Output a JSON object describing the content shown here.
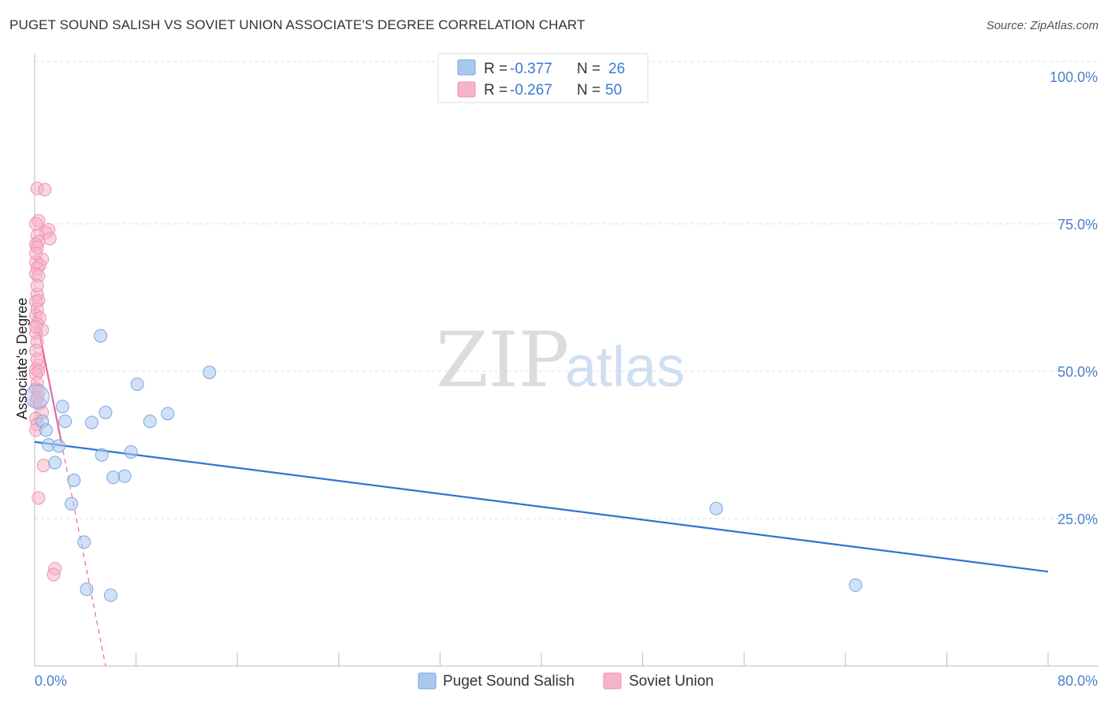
{
  "header": {
    "title": "PUGET SOUND SALISH VS SOVIET UNION ASSOCIATE'S DEGREE CORRELATION CHART",
    "source": "Source: ZipAtlas.com"
  },
  "watermark": {
    "zip": "ZIP",
    "atlas": "atlas"
  },
  "colors": {
    "blue_fill": "#a9c8f0",
    "blue_stroke": "#7aa6e0",
    "blue_line": "#2f74d0",
    "pink_fill": "#f6b4c8",
    "pink_stroke": "#ee93b0",
    "pink_line": "#e8689a",
    "accent_text": "#3b78d8",
    "grid": "#dddddd"
  },
  "stats_box": {
    "rows": [
      {
        "r_label": "R =",
        "r_value": "-0.377",
        "n_label": "N =",
        "n_value": "26"
      },
      {
        "r_label": "R =",
        "r_value": "-0.267",
        "n_label": "N =",
        "n_value": "50"
      }
    ]
  },
  "chart_data": {
    "type": "scatter",
    "title": "PUGET SOUND SALISH VS SOVIET UNION ASSOCIATE'S DEGREE CORRELATION CHART",
    "xlabel": "",
    "ylabel": "Associate's Degree",
    "xlim": [
      0,
      80
    ],
    "ylim": [
      0,
      100
    ],
    "x_tick_labels": [
      "0.0%",
      "80.0%"
    ],
    "y_ticks": [
      25,
      50,
      75,
      100
    ],
    "y_tick_labels": [
      "25.0%",
      "50.0%",
      "75.0%",
      "100.0%"
    ],
    "grid": true,
    "legend_position": "bottom-center",
    "series": [
      {
        "name": "Puget Sound Salish",
        "color": "#a9c8f0",
        "R": -0.377,
        "N": 26,
        "trend": {
          "x": [
            0,
            80
          ],
          "y": [
            38.0,
            16.0
          ],
          "style": "solid"
        },
        "points": [
          {
            "x": 0.2,
            "y": 45.7,
            "big": true
          },
          {
            "x": 0.6,
            "y": 41.5
          },
          {
            "x": 0.9,
            "y": 40.0
          },
          {
            "x": 1.1,
            "y": 37.5
          },
          {
            "x": 1.6,
            "y": 34.5
          },
          {
            "x": 1.9,
            "y": 37.3
          },
          {
            "x": 2.2,
            "y": 44.0
          },
          {
            "x": 2.4,
            "y": 41.5
          },
          {
            "x": 2.9,
            "y": 27.5
          },
          {
            "x": 3.1,
            "y": 31.5
          },
          {
            "x": 3.9,
            "y": 21.0
          },
          {
            "x": 4.1,
            "y": 13.0
          },
          {
            "x": 4.5,
            "y": 41.3
          },
          {
            "x": 5.2,
            "y": 56.0
          },
          {
            "x": 5.3,
            "y": 35.8
          },
          {
            "x": 5.6,
            "y": 43.0
          },
          {
            "x": 6.0,
            "y": 12.0
          },
          {
            "x": 6.2,
            "y": 32.0
          },
          {
            "x": 7.1,
            "y": 32.2
          },
          {
            "x": 7.6,
            "y": 36.3
          },
          {
            "x": 8.1,
            "y": 47.8
          },
          {
            "x": 9.1,
            "y": 41.5
          },
          {
            "x": 10.5,
            "y": 42.8
          },
          {
            "x": 13.8,
            "y": 49.8
          },
          {
            "x": 53.8,
            "y": 26.7
          },
          {
            "x": 64.8,
            "y": 13.7
          }
        ]
      },
      {
        "name": "Soviet Union",
        "color": "#f6b4c8",
        "R": -0.267,
        "N": 50,
        "trend": {
          "x": [
            0,
            2.1
          ],
          "y": [
            60.5,
            38.0
          ],
          "style": "solid",
          "extended_x": [
            2.1,
            5.6
          ],
          "extended_y": [
            38.0,
            0.0
          ]
        },
        "points": [
          {
            "x": 0.2,
            "y": 81.0
          },
          {
            "x": 0.8,
            "y": 80.8
          },
          {
            "x": 0.3,
            "y": 75.5
          },
          {
            "x": 0.1,
            "y": 75.0
          },
          {
            "x": 1.1,
            "y": 74.0
          },
          {
            "x": 0.9,
            "y": 73.5
          },
          {
            "x": 0.2,
            "y": 73.0
          },
          {
            "x": 1.2,
            "y": 72.5
          },
          {
            "x": 0.3,
            "y": 72.0
          },
          {
            "x": 0.1,
            "y": 71.5
          },
          {
            "x": 0.2,
            "y": 71.0
          },
          {
            "x": 0.6,
            "y": 69.0
          },
          {
            "x": 0.1,
            "y": 68.5
          },
          {
            "x": 0.4,
            "y": 68.0
          },
          {
            "x": 0.2,
            "y": 67.5
          },
          {
            "x": 0.1,
            "y": 66.5
          },
          {
            "x": 0.3,
            "y": 66.2
          },
          {
            "x": 0.2,
            "y": 63.0
          },
          {
            "x": 0.3,
            "y": 62.0
          },
          {
            "x": 0.1,
            "y": 61.8
          },
          {
            "x": 0.2,
            "y": 60.5
          },
          {
            "x": 0.1,
            "y": 59.5
          },
          {
            "x": 0.4,
            "y": 59.0
          },
          {
            "x": 0.2,
            "y": 58.0
          },
          {
            "x": 0.6,
            "y": 57.0
          },
          {
            "x": 0.1,
            "y": 56.5
          },
          {
            "x": 0.2,
            "y": 55.0
          },
          {
            "x": 0.1,
            "y": 53.5
          },
          {
            "x": 0.3,
            "y": 51.0
          },
          {
            "x": 0.1,
            "y": 50.3
          },
          {
            "x": 0.3,
            "y": 50.0
          },
          {
            "x": 0.1,
            "y": 49.5
          },
          {
            "x": 0.2,
            "y": 48.0
          },
          {
            "x": 0.1,
            "y": 47.0
          },
          {
            "x": 0.3,
            "y": 46.5
          },
          {
            "x": 0.2,
            "y": 45.5
          },
          {
            "x": 0.1,
            "y": 45.0
          },
          {
            "x": 0.4,
            "y": 44.5
          },
          {
            "x": 0.6,
            "y": 43.0
          },
          {
            "x": 0.1,
            "y": 42.0
          },
          {
            "x": 0.2,
            "y": 41.0
          },
          {
            "x": 0.1,
            "y": 40.0
          },
          {
            "x": 0.7,
            "y": 34.0
          },
          {
            "x": 0.3,
            "y": 28.5
          },
          {
            "x": 1.6,
            "y": 16.5
          },
          {
            "x": 1.5,
            "y": 15.5
          },
          {
            "x": 0.2,
            "y": 52.0
          },
          {
            "x": 0.1,
            "y": 57.5
          },
          {
            "x": 0.2,
            "y": 64.5
          },
          {
            "x": 0.1,
            "y": 70.0
          }
        ]
      }
    ]
  },
  "legend": {
    "items": [
      {
        "label": "Puget Sound Salish"
      },
      {
        "label": "Soviet Union"
      }
    ]
  }
}
